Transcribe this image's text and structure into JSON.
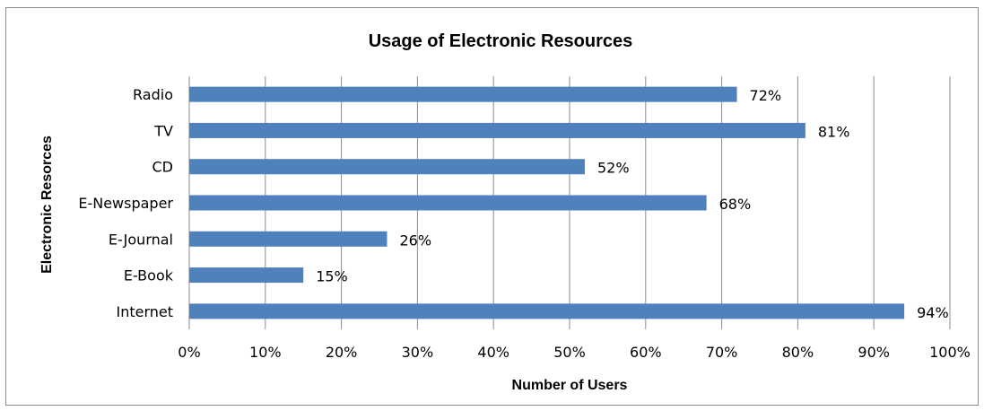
{
  "chart_data": {
    "type": "bar",
    "orientation": "horizontal",
    "title": "Usage of Electronic Resources",
    "xlabel": "Number of Users",
    "ylabel": "Electronic Resorces",
    "categories": [
      "Radio",
      "TV",
      "CD",
      "E-Newspaper",
      "E-Journal",
      "E-Book",
      "Internet"
    ],
    "values": [
      72,
      81,
      52,
      68,
      26,
      15,
      94
    ],
    "data_labels": [
      "72%",
      "81%",
      "52%",
      "68%",
      "26%",
      "15%",
      "94%"
    ],
    "xlim": [
      0,
      100
    ],
    "x_ticks": [
      0,
      10,
      20,
      30,
      40,
      50,
      60,
      70,
      80,
      90,
      100
    ],
    "x_tick_labels": [
      "0%",
      "10%",
      "20%",
      "30%",
      "40%",
      "50%",
      "60%",
      "70%",
      "80%",
      "90%",
      "100%"
    ],
    "grid": "vertical",
    "legend": "none",
    "bar_color": "#4F81BD",
    "grid_color": "#8c8c8c"
  }
}
